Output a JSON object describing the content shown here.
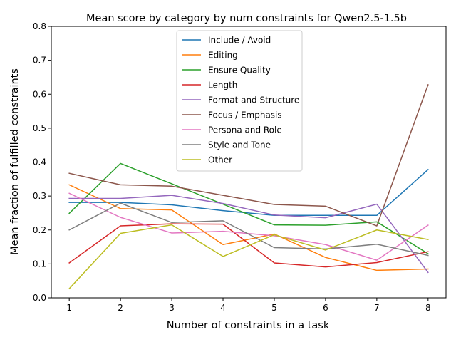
{
  "chart_data": {
    "type": "line",
    "title": "Mean score by category by num constraints for Qwen2.5-1.5b",
    "xlabel": "Number of constraints in a task",
    "ylabel": "Mean fraction of fulfilled constraints",
    "x": [
      1,
      2,
      3,
      4,
      5,
      6,
      7,
      8
    ],
    "xlim": [
      0.65,
      8.35
    ],
    "ylim": [
      0,
      0.8
    ],
    "xticks": [
      "1",
      "2",
      "3",
      "4",
      "5",
      "6",
      "7",
      "8"
    ],
    "yticks": [
      "0.0",
      "0.1",
      "0.2",
      "0.3",
      "0.4",
      "0.5",
      "0.6",
      "0.7",
      "0.8"
    ],
    "grid": false,
    "legend_position": "upper center",
    "series": [
      {
        "name": "Include / Avoid",
        "color": "#1f77b4",
        "values": [
          0.281,
          0.281,
          0.274,
          0.257,
          0.243,
          0.243,
          0.243,
          0.378
        ]
      },
      {
        "name": "Editing",
        "color": "#ff7f0e",
        "values": [
          0.333,
          0.263,
          0.259,
          0.157,
          0.188,
          0.119,
          0.081,
          0.085
        ]
      },
      {
        "name": "Ensure Quality",
        "color": "#2ca02c",
        "values": [
          0.249,
          0.396,
          0.336,
          0.276,
          0.215,
          0.214,
          0.224,
          0.13
        ]
      },
      {
        "name": "Length",
        "color": "#d62728",
        "values": [
          0.103,
          0.212,
          0.218,
          0.217,
          0.103,
          0.091,
          0.104,
          0.136
        ]
      },
      {
        "name": "Format and Structure",
        "color": "#9467bd",
        "values": [
          0.293,
          0.293,
          0.302,
          0.278,
          0.244,
          0.236,
          0.276,
          0.075
        ]
      },
      {
        "name": "Focus / Emphasis",
        "color": "#8c564b",
        "values": [
          0.367,
          0.333,
          0.329,
          0.302,
          0.275,
          0.27,
          0.212,
          0.628
        ]
      },
      {
        "name": "Persona and Role",
        "color": "#e377c2",
        "values": [
          0.308,
          0.237,
          0.191,
          0.196,
          0.183,
          0.157,
          0.111,
          0.214
        ]
      },
      {
        "name": "Style and Tone",
        "color": "#7f7f7f",
        "values": [
          0.2,
          0.279,
          0.222,
          0.227,
          0.148,
          0.144,
          0.158,
          0.125
        ]
      },
      {
        "name": "Other",
        "color": "#bcbd22",
        "values": [
          0.027,
          0.19,
          0.215,
          0.122,
          0.186,
          0.141,
          0.2,
          0.172
        ]
      }
    ]
  }
}
